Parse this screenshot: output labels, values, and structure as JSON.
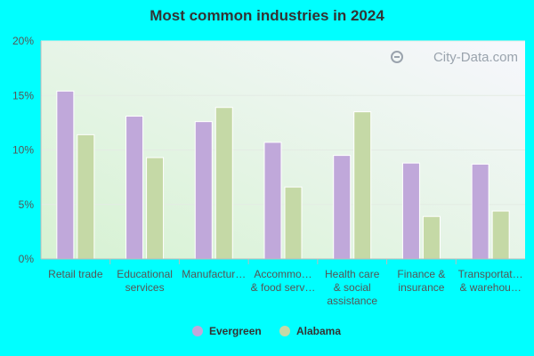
{
  "chart_data": {
    "type": "bar",
    "title": "Most common industries in 2024",
    "categories": [
      [
        "Retail trade"
      ],
      [
        "Educational",
        "services"
      ],
      [
        "Manufactur…"
      ],
      [
        "Accommo…",
        "& food serv…"
      ],
      [
        "Health care",
        "& social",
        "assistance"
      ],
      [
        "Finance &",
        "insurance"
      ],
      [
        "Transportat…",
        "& warehou…"
      ]
    ],
    "series": [
      {
        "name": "Evergreen",
        "color": "#c0a8da",
        "values": [
          15.4,
          13.1,
          12.6,
          10.7,
          9.5,
          8.8,
          8.7
        ]
      },
      {
        "name": "Alabama",
        "color": "#c5d9a6",
        "values": [
          11.4,
          9.3,
          13.9,
          6.6,
          13.5,
          3.9,
          4.4
        ]
      }
    ],
    "yticks": [
      "0%",
      "5%",
      "10%",
      "15%",
      "20%"
    ],
    "ylim": [
      0,
      20
    ],
    "legend_position": "bottom",
    "watermark": "City-Data.com"
  }
}
